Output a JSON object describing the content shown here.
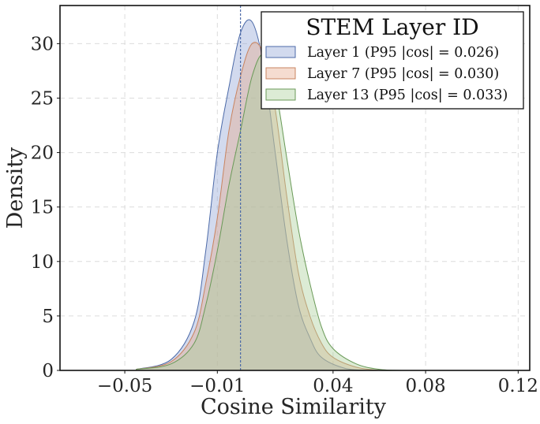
{
  "chart_data": {
    "type": "area",
    "title": "",
    "xlabel": "Cosine Similarity",
    "ylabel": "Density",
    "xlim": [
      -0.078,
      0.125
    ],
    "ylim": [
      0,
      33.5
    ],
    "x_ticks": [
      -0.05,
      -0.01,
      0.04,
      0.08,
      0.12
    ],
    "x_tick_labels": [
      "−0.05",
      "−0.01",
      "0.04",
      "0.08",
      "0.12"
    ],
    "y_ticks": [
      0,
      5,
      10,
      15,
      20,
      25,
      30
    ],
    "y_tick_labels": [
      "0",
      "5",
      "10",
      "15",
      "20",
      "25",
      "30"
    ],
    "grid": true,
    "reference_line": {
      "x": 0,
      "style": "dashed",
      "color": "#4c6aa8"
    },
    "legend": {
      "title": "STEM Layer ID",
      "position": "top-right",
      "entries": [
        "Layer 1  (P95 |cos| = 0.026)",
        "Layer 7  (P95 |cos| = 0.030)",
        "Layer 13  (P95 |cos| = 0.033)"
      ]
    },
    "series": [
      {
        "name": "Layer 1",
        "fill": "#8fa3d4",
        "stroke": "#4c6aa8",
        "x": [
          -0.045,
          -0.03,
          -0.02,
          -0.015,
          -0.01,
          -0.005,
          0.0,
          0.005,
          0.01,
          0.015,
          0.02,
          0.025,
          0.03,
          0.035,
          0.045,
          0.055
        ],
        "y": [
          0.1,
          1.0,
          4.5,
          11.0,
          20.0,
          26.0,
          31.0,
          32.0,
          28.0,
          20.0,
          12.0,
          6.0,
          3.0,
          1.2,
          0.2,
          0.0
        ]
      },
      {
        "name": "Layer 7",
        "fill": "#e5a889",
        "stroke": "#c98460",
        "x": [
          -0.045,
          -0.03,
          -0.02,
          -0.015,
          -0.01,
          -0.005,
          0.0,
          0.005,
          0.01,
          0.015,
          0.02,
          0.025,
          0.03,
          0.035,
          0.04,
          0.05,
          0.06
        ],
        "y": [
          0.1,
          0.8,
          3.5,
          8.0,
          14.0,
          22.0,
          27.0,
          30.0,
          29.0,
          24.0,
          16.0,
          9.0,
          5.0,
          2.5,
          1.2,
          0.3,
          0.0
        ]
      },
      {
        "name": "Layer 13",
        "fill": "#a8cd96",
        "stroke": "#6a9a58",
        "x": [
          -0.045,
          -0.03,
          -0.02,
          -0.015,
          -0.01,
          -0.005,
          0.0,
          0.005,
          0.01,
          0.015,
          0.02,
          0.025,
          0.03,
          0.035,
          0.04,
          0.05,
          0.06,
          0.07
        ],
        "y": [
          0.1,
          0.6,
          2.5,
          6.0,
          11.0,
          17.0,
          22.0,
          27.0,
          29.0,
          26.0,
          19.5,
          13.0,
          8.0,
          4.0,
          2.0,
          0.6,
          0.1,
          0.0
        ]
      }
    ]
  }
}
